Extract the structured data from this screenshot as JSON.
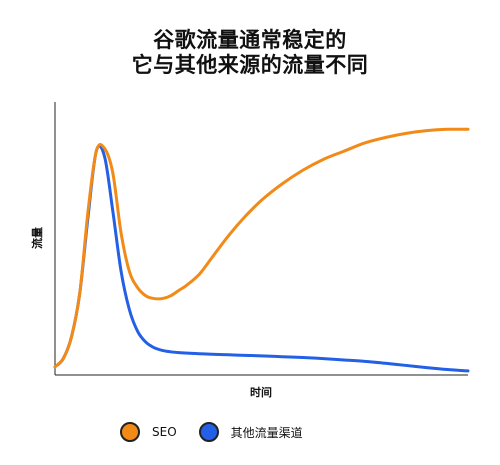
{
  "chart_data": {
    "type": "line",
    "title_lines": [
      "谷歌流量通常稳定的",
      "它与其他来源的流量不同"
    ],
    "xlabel": "时间",
    "ylabel": "流量",
    "ylim": [
      0,
      100
    ],
    "xlim": [
      0,
      100
    ],
    "grid": false,
    "legend_position": "bottom-center",
    "x": [
      0,
      2,
      4,
      6,
      8,
      10,
      12,
      14,
      16,
      18,
      20,
      22,
      24,
      26,
      28,
      30,
      32,
      35,
      38,
      42,
      46,
      50,
      55,
      60,
      65,
      70,
      75,
      80,
      85,
      90,
      95,
      100
    ],
    "series": [
      {
        "name": "SEO",
        "color": "#F28A17",
        "values": [
          3,
          6,
          14,
          30,
          60,
          82,
          83,
          74,
          52,
          38,
          32,
          29,
          28,
          28,
          29,
          31,
          33,
          37,
          43,
          51,
          58,
          64,
          70,
          75,
          79,
          82,
          85,
          87,
          88.5,
          89.5,
          90,
          90
        ]
      },
      {
        "name": "其他流量渠道",
        "color": "#2360E6",
        "values": [
          3,
          6,
          14,
          30,
          58,
          82,
          80,
          60,
          38,
          24,
          16,
          12,
          10,
          9,
          8.5,
          8.2,
          8,
          7.8,
          7.6,
          7.4,
          7.2,
          7,
          6.7,
          6.4,
          6,
          5.5,
          5,
          4.3,
          3.5,
          2.7,
          2,
          1.5
        ]
      }
    ]
  },
  "legend": {
    "items": [
      {
        "label": "SEO",
        "color": "#F28A17"
      },
      {
        "label": "其他流量渠道",
        "color": "#2360E6"
      }
    ]
  }
}
